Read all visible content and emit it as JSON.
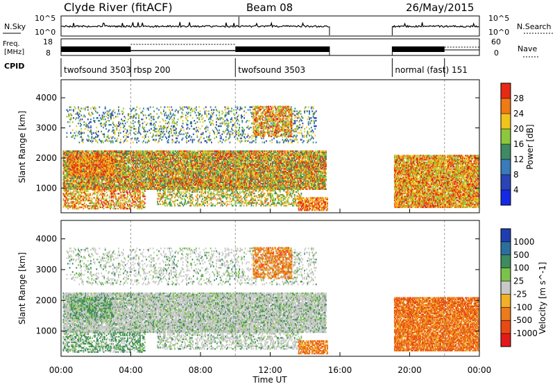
{
  "header": {
    "station": "Clyde River (fitACF)",
    "beam": "Beam 08",
    "date": "26/May/2015"
  },
  "summary": {
    "nsky_label": "N.Sky",
    "nsky_ticks": [
      "10^5",
      "10^0"
    ],
    "nsearch_label": "N.Search",
    "nsearch_ticks": [
      "10^5",
      "10^0"
    ],
    "freq_label_1": "Freq.",
    "freq_label_2": "[MHz]",
    "freq_ticks": [
      "18",
      "8"
    ],
    "nave_label": "Nave",
    "nave_ticks": [
      "60",
      "0"
    ],
    "cpid_label": "CPID",
    "cpid_segments": [
      {
        "label": "twofsound 3503",
        "start": 0.0
      },
      {
        "label": "rbsp 200",
        "start": 4.0
      },
      {
        "label": "twofsound 3503",
        "start": 10.0
      },
      {
        "label": "normal (fast) 151",
        "start": 19.0
      }
    ]
  },
  "axes": {
    "ylabel": "Slant Range [km]",
    "xlabel": "Time UT",
    "x_ticks": [
      "00:00",
      "04:00",
      "08:00",
      "12:00",
      "16:00",
      "20:00",
      "00:00"
    ],
    "y_ticks": [
      "1000",
      "2000",
      "3000",
      "4000"
    ]
  },
  "chart_data": [
    {
      "type": "heatmap",
      "name": "power",
      "title": "",
      "xlabel": "Time UT",
      "ylabel": "Slant Range [km]",
      "xlim": [
        0,
        24
      ],
      "ylim": [
        180,
        4600
      ],
      "colorbar_label": "Power [dB]",
      "colorbar_ticks": [
        "28",
        "24",
        "20",
        "16",
        "12",
        "8",
        "4"
      ],
      "colorbar_colors": [
        "#1428e6",
        "#2a44b6",
        "#3a7bb8",
        "#3e8a62",
        "#8cc83e",
        "#f0c41e",
        "#f07a14",
        "#e62a14"
      ],
      "colorbar_range": [
        0,
        32
      ],
      "data_gaps": [
        [
          15.4,
          19.0
        ]
      ]
    },
    {
      "type": "heatmap",
      "name": "velocity",
      "title": "",
      "xlabel": "Time UT",
      "ylabel": "Slant Range [km]",
      "xlim": [
        0,
        24
      ],
      "ylim": [
        180,
        4600
      ],
      "colorbar_label": "Velocity [m s^-1]",
      "colorbar_ticks": [
        "1000",
        "500",
        "100",
        "25",
        "-25",
        "-100",
        "-500",
        "-1000"
      ],
      "colorbar_colors": [
        "#1f3fb0",
        "#2c6f9e",
        "#3e8c5e",
        "#7cc24a",
        "#c8c8c8",
        "#f0b028",
        "#ec7b1c",
        "#e84a14",
        "#e41a1a"
      ],
      "data_gaps": [
        [
          15.4,
          19.0
        ]
      ]
    }
  ]
}
